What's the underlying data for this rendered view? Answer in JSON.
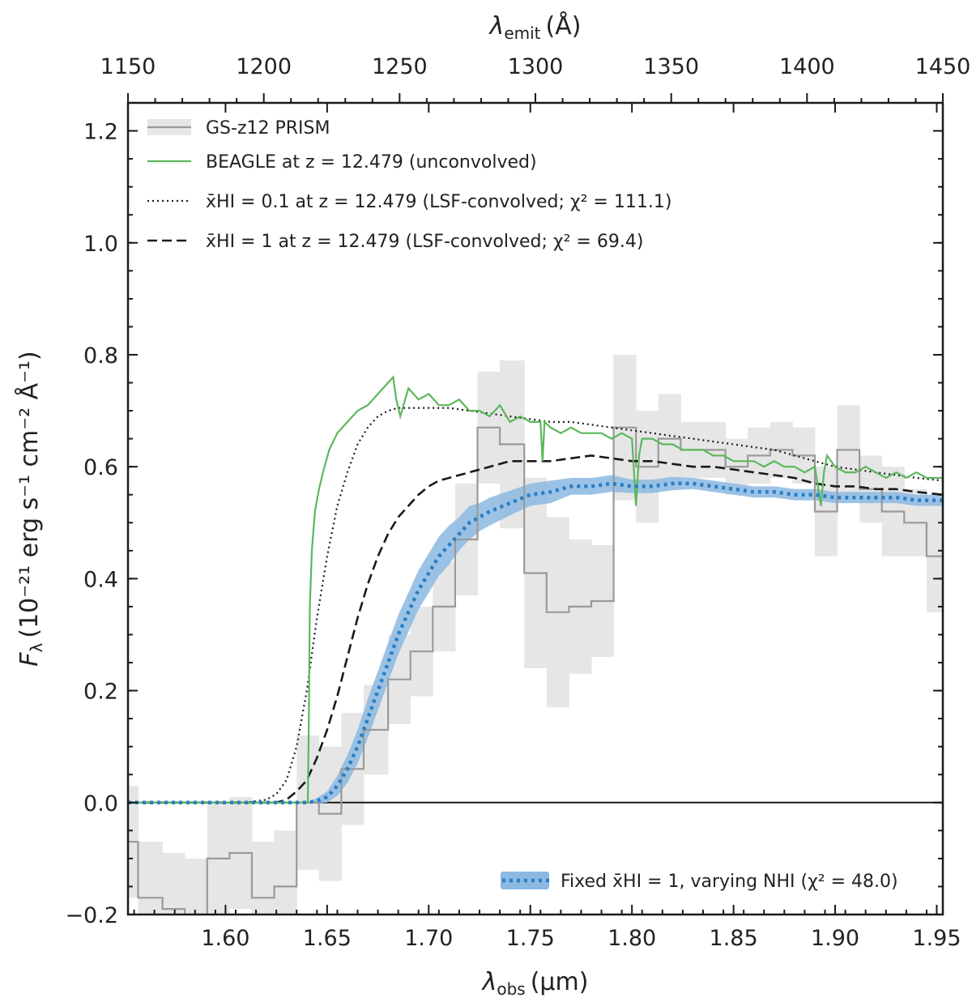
{
  "chart_data": {
    "type": "line",
    "xlabel_main": "λ",
    "xlabel_sub": "obs",
    "xlabel_unit": "(μm)",
    "top_xlabel_main": "λ",
    "top_xlabel_sub": "emit",
    "top_xlabel_unit": "(Å)",
    "ylabel_main": "F",
    "ylabel_sub": "λ",
    "ylabel_unit": "(10⁻²¹ erg s⁻¹ cm⁻² Å⁻¹)",
    "xlim": [
      1.552,
      1.953
    ],
    "ylim": [
      -0.2,
      1.25
    ],
    "top_xlim": [
      1150,
      1450
    ],
    "x_ticks": [
      1.6,
      1.65,
      1.7,
      1.75,
      1.8,
      1.85,
      1.9,
      1.95
    ],
    "x_tick_labels": [
      "1.60",
      "1.65",
      "1.70",
      "1.75",
      "1.80",
      "1.85",
      "1.90",
      "1.95"
    ],
    "y_ticks": [
      -0.2,
      0.0,
      0.2,
      0.4,
      0.6,
      0.8,
      1.0,
      1.2
    ],
    "y_tick_labels": [
      "−0.2",
      "0.0",
      "0.2",
      "0.4",
      "0.6",
      "0.8",
      "1.0",
      "1.2"
    ],
    "top_ticks": [
      1150,
      1200,
      1250,
      1300,
      1350,
      1400,
      1450
    ],
    "top_tick_labels": [
      "1150",
      "1200",
      "1250",
      "1300",
      "1350",
      "1400",
      "1450"
    ],
    "legend": {
      "upper_left": [
        {
          "key": "prism",
          "label": "GS-z12 PRISM"
        },
        {
          "key": "beagle",
          "label": "BEAGLE at z = 12.479 (unconvolved)"
        },
        {
          "key": "x01",
          "label": "x̄HI = 0.1 at z = 12.479 (LSF-convolved; χ² = 111.1)"
        },
        {
          "key": "x1",
          "label": "x̄HI = 1 at z = 12.479 (LSF-convolved; χ² = 69.4)"
        }
      ],
      "lower_right": [
        {
          "key": "nhi",
          "label": "Fixed x̄HI = 1, varying NHI (χ² = 48.0)"
        }
      ]
    },
    "colors": {
      "prism_line": "#9a9a9a",
      "prism_band": "#e6e6e6",
      "beagle": "#5cb85c",
      "model": "#1a1a1a",
      "nhi_line": "#2a7fc4",
      "nhi_band": "#8bb9e2"
    },
    "series": {
      "prism": {
        "edges": [
          1.552,
          1.557,
          1.569,
          1.58,
          1.591,
          1.602,
          1.613,
          1.624,
          1.635,
          1.646,
          1.657,
          1.668,
          1.68,
          1.691,
          1.702,
          1.713,
          1.724,
          1.735,
          1.747,
          1.758,
          1.769,
          1.78,
          1.791,
          1.802,
          1.813,
          1.824,
          1.835,
          1.846,
          1.857,
          1.868,
          1.879,
          1.89,
          1.901,
          1.912,
          1.923,
          1.934,
          1.945,
          1.953
        ],
        "values": [
          -0.07,
          -0.17,
          -0.19,
          -0.2,
          -0.1,
          -0.09,
          -0.17,
          -0.15,
          0.0,
          -0.02,
          0.06,
          0.13,
          0.22,
          0.27,
          0.35,
          0.47,
          0.67,
          0.64,
          0.41,
          0.34,
          0.35,
          0.36,
          0.67,
          0.6,
          0.65,
          0.63,
          0.63,
          0.6,
          0.62,
          0.63,
          0.62,
          0.52,
          0.63,
          0.56,
          0.52,
          0.5,
          0.44
        ],
        "errors": [
          0.1,
          0.1,
          0.1,
          0.1,
          0.1,
          0.1,
          0.1,
          0.1,
          0.12,
          0.12,
          0.1,
          0.08,
          0.08,
          0.08,
          0.08,
          0.1,
          0.1,
          0.15,
          0.17,
          0.17,
          0.12,
          0.1,
          0.13,
          0.1,
          0.08,
          0.05,
          0.05,
          0.05,
          0.05,
          0.05,
          0.05,
          0.08,
          0.08,
          0.06,
          0.08,
          0.06,
          0.1
        ]
      },
      "beagle": {
        "x": [
          1.552,
          1.6405,
          1.641,
          1.6415,
          1.6425,
          1.644,
          1.646,
          1.648,
          1.651,
          1.655,
          1.66,
          1.665,
          1.67,
          1.675,
          1.68,
          1.6825,
          1.684,
          1.686,
          1.69,
          1.695,
          1.7,
          1.705,
          1.71,
          1.715,
          1.72,
          1.725,
          1.73,
          1.735,
          1.74,
          1.745,
          1.75,
          1.755,
          1.756,
          1.757,
          1.76,
          1.765,
          1.77,
          1.775,
          1.78,
          1.785,
          1.79,
          1.795,
          1.8,
          1.802,
          1.8035,
          1.805,
          1.81,
          1.815,
          1.82,
          1.825,
          1.83,
          1.835,
          1.84,
          1.845,
          1.85,
          1.855,
          1.86,
          1.865,
          1.87,
          1.875,
          1.88,
          1.885,
          1.89,
          1.893,
          1.8945,
          1.896,
          1.9,
          1.905,
          1.91,
          1.915,
          1.92,
          1.925,
          1.93,
          1.935,
          1.94,
          1.945,
          1.95,
          1.953
        ],
        "y": [
          0.0,
          0.0,
          0.15,
          0.35,
          0.45,
          0.52,
          0.56,
          0.59,
          0.63,
          0.66,
          0.68,
          0.7,
          0.71,
          0.73,
          0.75,
          0.76,
          0.72,
          0.69,
          0.74,
          0.72,
          0.73,
          0.71,
          0.71,
          0.72,
          0.7,
          0.7,
          0.69,
          0.71,
          0.68,
          0.69,
          0.68,
          0.68,
          0.61,
          0.68,
          0.67,
          0.66,
          0.67,
          0.66,
          0.66,
          0.66,
          0.65,
          0.66,
          0.65,
          0.53,
          0.62,
          0.65,
          0.65,
          0.64,
          0.64,
          0.63,
          0.63,
          0.63,
          0.62,
          0.62,
          0.61,
          0.61,
          0.61,
          0.6,
          0.61,
          0.6,
          0.6,
          0.59,
          0.6,
          0.53,
          0.59,
          0.62,
          0.6,
          0.59,
          0.59,
          0.6,
          0.59,
          0.58,
          0.59,
          0.58,
          0.59,
          0.58,
          0.58,
          0.58
        ]
      },
      "x01": {
        "x": [
          1.552,
          1.61,
          1.62,
          1.625,
          1.63,
          1.635,
          1.64,
          1.645,
          1.65,
          1.655,
          1.66,
          1.665,
          1.67,
          1.675,
          1.68,
          1.685,
          1.69,
          1.7,
          1.71,
          1.72,
          1.73,
          1.74,
          1.75,
          1.76,
          1.77,
          1.78,
          1.79,
          1.8,
          1.81,
          1.82,
          1.83,
          1.84,
          1.85,
          1.86,
          1.87,
          1.88,
          1.89,
          1.9,
          1.91,
          1.92,
          1.93,
          1.94,
          1.953
        ],
        "y": [
          0.0,
          0.0,
          0.005,
          0.015,
          0.04,
          0.1,
          0.2,
          0.33,
          0.44,
          0.53,
          0.59,
          0.64,
          0.67,
          0.69,
          0.7,
          0.705,
          0.705,
          0.705,
          0.705,
          0.7,
          0.695,
          0.69,
          0.685,
          0.68,
          0.68,
          0.675,
          0.67,
          0.665,
          0.66,
          0.655,
          0.65,
          0.645,
          0.64,
          0.635,
          0.63,
          0.62,
          0.61,
          0.6,
          0.595,
          0.59,
          0.585,
          0.58,
          0.575
        ]
      },
      "x1": {
        "x": [
          1.552,
          1.625,
          1.63,
          1.635,
          1.64,
          1.645,
          1.65,
          1.655,
          1.66,
          1.665,
          1.67,
          1.675,
          1.68,
          1.685,
          1.69,
          1.695,
          1.7,
          1.705,
          1.71,
          1.72,
          1.73,
          1.74,
          1.75,
          1.76,
          1.77,
          1.78,
          1.79,
          1.8,
          1.81,
          1.82,
          1.83,
          1.84,
          1.85,
          1.86,
          1.87,
          1.88,
          1.89,
          1.9,
          1.91,
          1.92,
          1.93,
          1.94,
          1.953
        ],
        "y": [
          0.0,
          0.0,
          0.005,
          0.02,
          0.04,
          0.08,
          0.13,
          0.19,
          0.26,
          0.33,
          0.39,
          0.44,
          0.48,
          0.51,
          0.53,
          0.55,
          0.565,
          0.575,
          0.58,
          0.59,
          0.6,
          0.61,
          0.61,
          0.61,
          0.615,
          0.62,
          0.615,
          0.61,
          0.61,
          0.605,
          0.6,
          0.6,
          0.595,
          0.59,
          0.585,
          0.58,
          0.57,
          0.565,
          0.565,
          0.56,
          0.56,
          0.555,
          0.55
        ]
      },
      "nhi": {
        "x": [
          1.552,
          1.63,
          1.64,
          1.645,
          1.65,
          1.655,
          1.66,
          1.665,
          1.67,
          1.675,
          1.68,
          1.685,
          1.69,
          1.695,
          1.7,
          1.705,
          1.71,
          1.715,
          1.72,
          1.725,
          1.73,
          1.74,
          1.75,
          1.76,
          1.77,
          1.78,
          1.79,
          1.8,
          1.81,
          1.82,
          1.83,
          1.84,
          1.85,
          1.86,
          1.87,
          1.88,
          1.89,
          1.9,
          1.91,
          1.92,
          1.93,
          1.94,
          1.953
        ],
        "y": [
          0.0,
          0.0,
          0.0,
          0.003,
          0.01,
          0.03,
          0.06,
          0.1,
          0.15,
          0.2,
          0.25,
          0.3,
          0.34,
          0.38,
          0.41,
          0.44,
          0.46,
          0.48,
          0.5,
          0.51,
          0.52,
          0.535,
          0.55,
          0.555,
          0.565,
          0.565,
          0.57,
          0.565,
          0.565,
          0.57,
          0.57,
          0.565,
          0.56,
          0.555,
          0.555,
          0.55,
          0.55,
          0.545,
          0.545,
          0.545,
          0.545,
          0.54,
          0.54
        ],
        "band": [
          0.0,
          0.0,
          0.0,
          0.005,
          0.01,
          0.018,
          0.025,
          0.03,
          0.035,
          0.035,
          0.035,
          0.035,
          0.035,
          0.035,
          0.035,
          0.035,
          0.035,
          0.03,
          0.03,
          0.025,
          0.025,
          0.022,
          0.02,
          0.02,
          0.015,
          0.015,
          0.015,
          0.012,
          0.012,
          0.012,
          0.01,
          0.01,
          0.01,
          0.01,
          0.01,
          0.01,
          0.01,
          0.01,
          0.01,
          0.01,
          0.01,
          0.01,
          0.01
        ]
      }
    }
  }
}
